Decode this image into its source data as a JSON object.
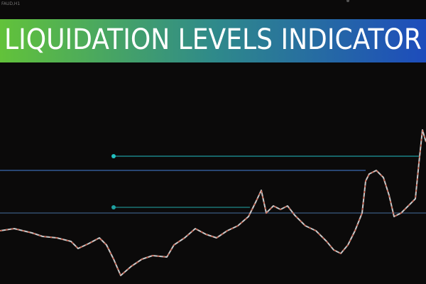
{
  "window_label": "FAUD,H1",
  "banner": {
    "title": "LIQUIDATION LEVELS INDICATOR"
  }
}
